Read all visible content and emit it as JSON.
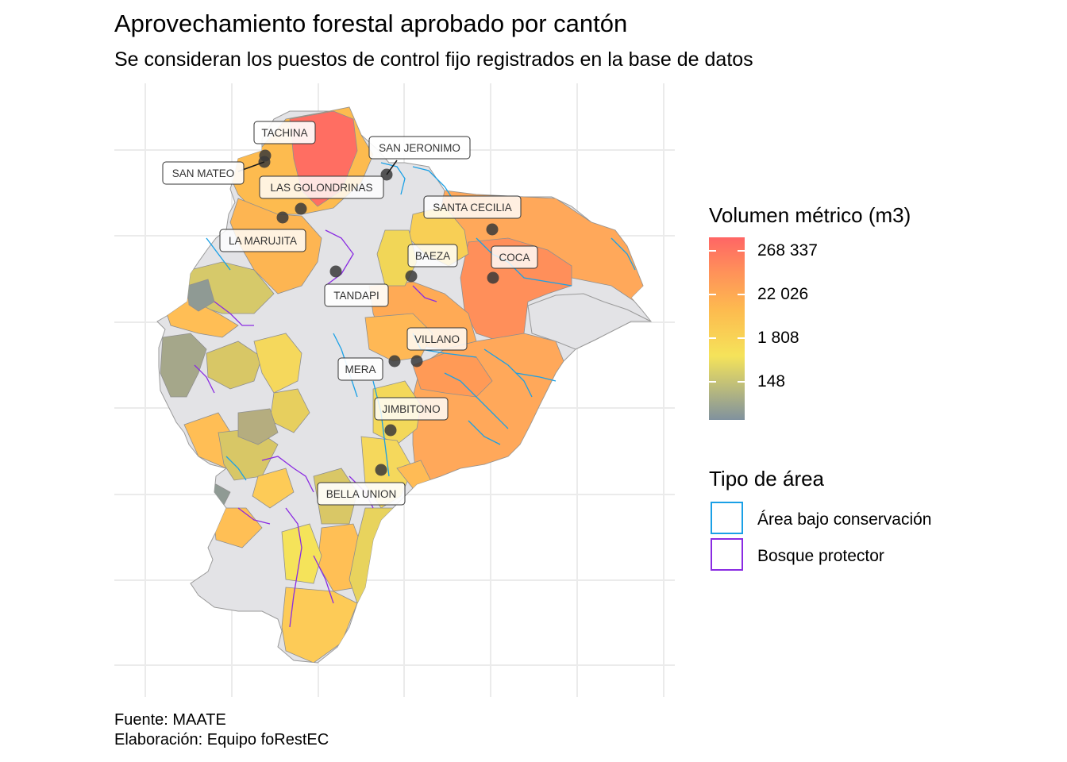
{
  "title": "Aprovechamiento forestal aprobado por cantón",
  "subtitle": "Se consideran los puestos de control fijo registrados en la base de datos",
  "caption": {
    "source": "Fuente: MAATE",
    "credit": "Elaboración: Equipo foRestEC"
  },
  "colors": {
    "grid": "#ebebeb",
    "no_data": "#e3e3e6",
    "scale_low": "#80929e",
    "scale_mid_low": "#f5e35a",
    "scale_mid": "#fdbb4f",
    "scale_high": "#ff8f5a",
    "scale_top": "#ff6565",
    "conservation": "#1aa0e6",
    "protector": "#8a2be2",
    "point": "#3a3a3a"
  },
  "legend_volume": {
    "title": "Volumen métrico (m3)",
    "ticks": [
      "268 337",
      "22 026",
      "1 808",
      "148"
    ]
  },
  "legend_area": {
    "title": "Tipo de área",
    "items": [
      {
        "label": "Área bajo conservación",
        "color": "#1aa0e6"
      },
      {
        "label": "Bosque protector",
        "color": "#8a2be2"
      }
    ]
  },
  "control_points": [
    "TACHINA",
    "SAN JERONIMO",
    "SAN MATEO",
    "LAS GOLONDRINAS",
    "SANTA CECILIA",
    "LA MARUJITA",
    "BAEZA",
    "COCA",
    "TANDAPI",
    "VILLANO",
    "MERA",
    "JIMBITONO",
    "BELLA UNION"
  ]
}
